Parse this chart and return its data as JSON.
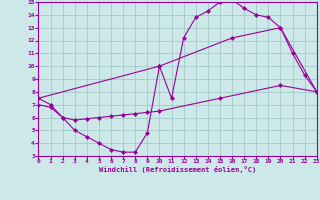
{
  "line1_x": [
    0,
    1,
    2,
    3,
    4,
    5,
    6,
    7,
    8,
    9,
    10,
    11,
    12,
    13,
    14,
    15,
    16,
    17,
    18,
    19,
    20,
    21,
    22,
    23
  ],
  "line1_y": [
    7.5,
    7.0,
    6.0,
    5.0,
    4.5,
    4.0,
    3.5,
    3.3,
    3.3,
    4.8,
    10.0,
    7.5,
    12.2,
    13.8,
    14.3,
    15.0,
    15.2,
    14.5,
    14.0,
    13.8,
    13.0,
    11.0,
    9.3,
    8.0
  ],
  "line2_x": [
    0,
    10,
    16,
    20,
    23
  ],
  "line2_y": [
    7.5,
    10.0,
    12.2,
    13.0,
    8.0
  ],
  "line3_x": [
    0,
    1,
    2,
    3,
    4,
    5,
    6,
    7,
    8,
    9,
    10,
    15,
    20,
    23
  ],
  "line3_y": [
    7.0,
    6.8,
    6.0,
    5.8,
    5.9,
    6.0,
    6.1,
    6.2,
    6.3,
    6.4,
    6.5,
    7.5,
    8.5,
    8.0
  ],
  "color": "#990099",
  "bg_color": "#cce8e8",
  "grid_color": "#aacccc",
  "xlabel": "Windchill (Refroidissement éolien,°C)",
  "xlim": [
    0,
    23
  ],
  "ylim": [
    3,
    15
  ],
  "xticks": [
    0,
    1,
    2,
    3,
    4,
    5,
    6,
    7,
    8,
    9,
    10,
    11,
    12,
    13,
    14,
    15,
    16,
    17,
    18,
    19,
    20,
    21,
    22,
    23
  ],
  "yticks": [
    3,
    4,
    5,
    6,
    7,
    8,
    9,
    10,
    11,
    12,
    13,
    14,
    15
  ]
}
